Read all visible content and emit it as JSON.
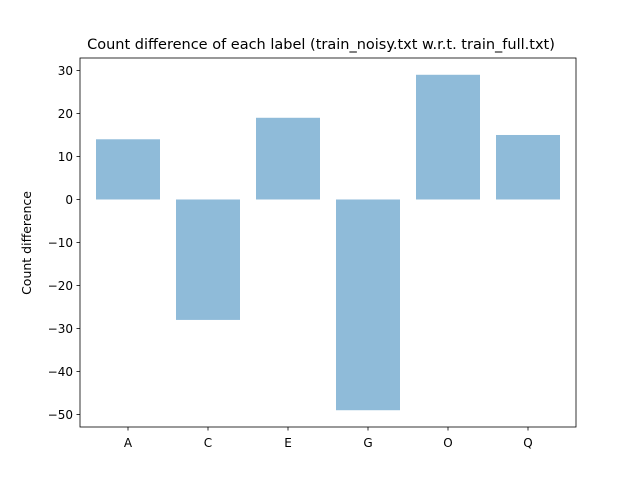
{
  "chart_data": {
    "type": "bar",
    "title": "Count difference of each label (train_noisy.txt w.r.t. train_full.txt)",
    "xlabel": "",
    "ylabel": "Count difference",
    "categories": [
      "A",
      "C",
      "E",
      "G",
      "O",
      "Q"
    ],
    "values": [
      14,
      -28,
      19,
      -49,
      29,
      15
    ],
    "ylim": [
      -52.9,
      32.9
    ],
    "yticks": [
      -50,
      -40,
      -30,
      -20,
      -10,
      0,
      10,
      20,
      30
    ],
    "grid": false,
    "bar_color": "#8fbbd9"
  }
}
